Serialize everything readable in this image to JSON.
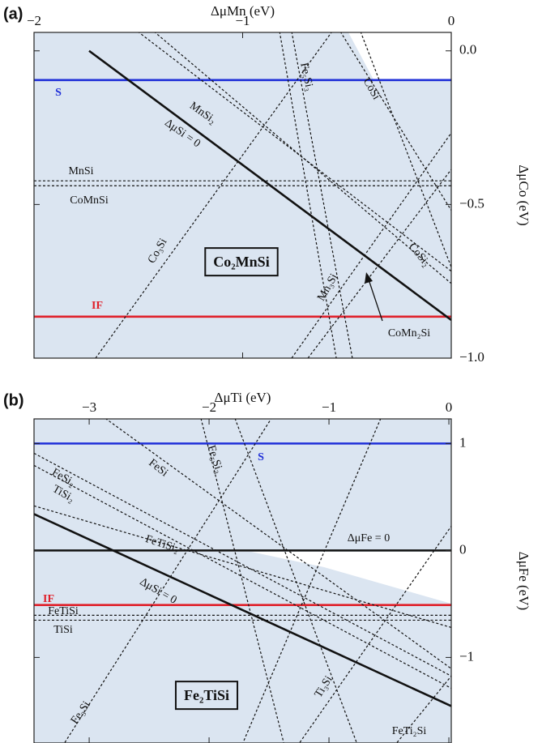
{
  "chart_data": [
    {
      "type": "line",
      "panel": "(a)",
      "xlabel": "ΔμMn (eV)",
      "ylabel": "ΔμCo (eV)",
      "xlim": [
        -2,
        0
      ],
      "ylim": [
        -1,
        0.06
      ],
      "xticks": [
        {
          "value": -2,
          "label": "−2"
        },
        {
          "value": -1,
          "label": "−1"
        },
        0
      ],
      "yticks": [
        {
          "value": 0,
          "label": "0.0"
        },
        {
          "value": -0.5,
          "label": "−0.5"
        },
        {
          "value": -1,
          "label": "−1.0"
        }
      ],
      "compound": "Co₂MnSi",
      "annotation": "CoMn₂Si",
      "series": [
        {
          "name": "S",
          "color": "#1f2fd8",
          "dash": false,
          "x": [
            -2,
            0
          ],
          "values": [
            -0.095,
            -0.095
          ]
        },
        {
          "name": "IF",
          "color": "#e0202a",
          "dash": false,
          "x": [
            -2,
            0
          ],
          "values": [
            -0.865,
            -0.865
          ]
        },
        {
          "name": "ΔμSi = 0",
          "color": "#111111",
          "dash": false,
          "x": [
            -1.736,
            0
          ],
          "values": [
            0,
            -0.876
          ]
        },
        {
          "name": "MnSi",
          "color": "#111111",
          "dash": true,
          "x": [
            -2,
            0
          ],
          "values": [
            -0.423,
            -0.423
          ]
        },
        {
          "name": "CoMnSi",
          "color": "#111111",
          "dash": true,
          "x": [
            -2,
            0
          ],
          "values": [
            -0.439,
            -0.439
          ]
        },
        {
          "name": "MnSi₂",
          "color": "#111111",
          "dash": true,
          "x": [
            -1.503,
            0
          ],
          "values": [
            0.063,
            -0.717
          ]
        },
        {
          "color": "#111111",
          "dash": true,
          "x": [
            -1.425,
            0
          ],
          "values": [
            0.063,
            -0.757
          ]
        },
        {
          "name": "Co₃Si",
          "color": "#111111",
          "dash": true,
          "x": [
            -1.705,
            -0.571
          ],
          "values": [
            -1,
            0.063
          ]
        },
        {
          "name": "Mn₃Si",
          "color": "#111111",
          "dash": true,
          "x": [
            -0.765,
            0
          ],
          "values": [
            -1,
            -0.267
          ]
        },
        {
          "color": "#111111",
          "dash": true,
          "x": [
            -0.687,
            0
          ],
          "values": [
            -1,
            -0.386
          ]
        },
        {
          "name": "Fe₅Si₃",
          "color": "#111111",
          "dash": true,
          "x": [
            -0.765,
            -0.474
          ],
          "values": [
            0.063,
            -1
          ]
        },
        {
          "name": "CoSi",
          "color": "#111111",
          "dash": true,
          "x": [
            -0.532,
            0
          ],
          "values": [
            0.063,
            -0.519
          ]
        },
        {
          "name": "CoSi₂",
          "color": "#111111",
          "dash": true,
          "x": [
            -0.435,
            0
          ],
          "values": [
            0.063,
            -0.704
          ]
        },
        {
          "color": "#111111",
          "dash": true,
          "x": [
            -0.823,
            -0.551
          ],
          "values": [
            0.063,
            -1
          ]
        }
      ]
    },
    {
      "type": "line",
      "panel": "(b)",
      "xlabel": "ΔμTi (eV)",
      "ylabel": "ΔμFe (eV)",
      "xlim": [
        -3.46,
        0.02
      ],
      "ylim": [
        -1.8,
        1.23
      ],
      "xticks": [
        {
          "value": -3,
          "label": "−3"
        },
        {
          "value": -2,
          "label": "−2"
        },
        {
          "value": -1,
          "label": "−1"
        },
        0
      ],
      "yticks": [
        1,
        0,
        {
          "value": -1,
          "label": "−1"
        }
      ],
      "compound": "Fe₂TiSi",
      "series": [
        {
          "name": "S",
          "color": "#1f2fd8",
          "dash": false,
          "x": [
            -3.46,
            0.02
          ],
          "values": [
            1,
            1
          ]
        },
        {
          "name": "IF",
          "color": "#e0202a",
          "dash": false,
          "x": [
            -3.46,
            0.02
          ],
          "values": [
            -0.51,
            -0.51
          ]
        },
        {
          "name": "ΔμFe = 0",
          "color": "#111111",
          "dash": false,
          "x": [
            -3.46,
            0.02
          ],
          "values": [
            0,
            0
          ]
        },
        {
          "name": "ΔμSi = 0",
          "color": "#111111",
          "dash": false,
          "x": [
            -3.46,
            0.02
          ],
          "values": [
            0.34,
            -1.455
          ]
        },
        {
          "name": "FeTiSi",
          "color": "#111111",
          "dash": true,
          "x": [
            -3.46,
            0.02
          ],
          "values": [
            -0.606,
            -0.606
          ]
        },
        {
          "name": "TiSi",
          "color": "#111111",
          "dash": true,
          "x": [
            -3.46,
            0.02
          ],
          "values": [
            -0.652,
            -0.652
          ]
        },
        {
          "name": "FeSi₂",
          "color": "#111111",
          "dash": true,
          "x": [
            -3.46,
            0.02
          ],
          "values": [
            0.909,
            -1.174
          ]
        },
        {
          "name": "TiSi₂",
          "color": "#111111",
          "dash": true,
          "x": [
            -3.46,
            0.02
          ],
          "values": [
            0.795,
            -1.288
          ]
        },
        {
          "name": "FeTiSi₂",
          "color": "#111111",
          "dash": true,
          "x": [
            -3.46,
            0.02
          ],
          "values": [
            0.417,
            -0.72
          ]
        },
        {
          "name": "FeSi",
          "color": "#111111",
          "dash": true,
          "x": [
            -2.865,
            0.02
          ],
          "values": [
            1.235,
            -1.105
          ]
        },
        {
          "name": "Fe₅Si₃",
          "color": "#111111",
          "dash": true,
          "x": [
            -2.068,
            -1.378
          ],
          "values": [
            1.235,
            -1.795
          ]
        },
        {
          "name": "Fe₃Si",
          "color": "#111111",
          "dash": true,
          "x": [
            -3.203,
            -1.48
          ],
          "values": [
            -1.795,
            1.235
          ]
        },
        {
          "name": "Ti₃Si",
          "color": "#111111",
          "dash": true,
          "x": [
            -1.243,
            0.02
          ],
          "values": [
            -1.795,
            0.227
          ]
        },
        {
          "name": "FeTi₂Si",
          "color": "#111111",
          "dash": true,
          "x": [
            -0.432,
            0.02
          ],
          "values": [
            -1.795,
            -1.174
          ]
        },
        {
          "color": "#111111",
          "dash": true,
          "x": [
            -1.784,
            -0.77
          ],
          "values": [
            1.235,
            -1.795
          ]
        },
        {
          "color": "#111111",
          "dash": true,
          "x": [
            -0.568,
            -1.716
          ],
          "values": [
            1.235,
            -1.795
          ]
        }
      ]
    }
  ]
}
